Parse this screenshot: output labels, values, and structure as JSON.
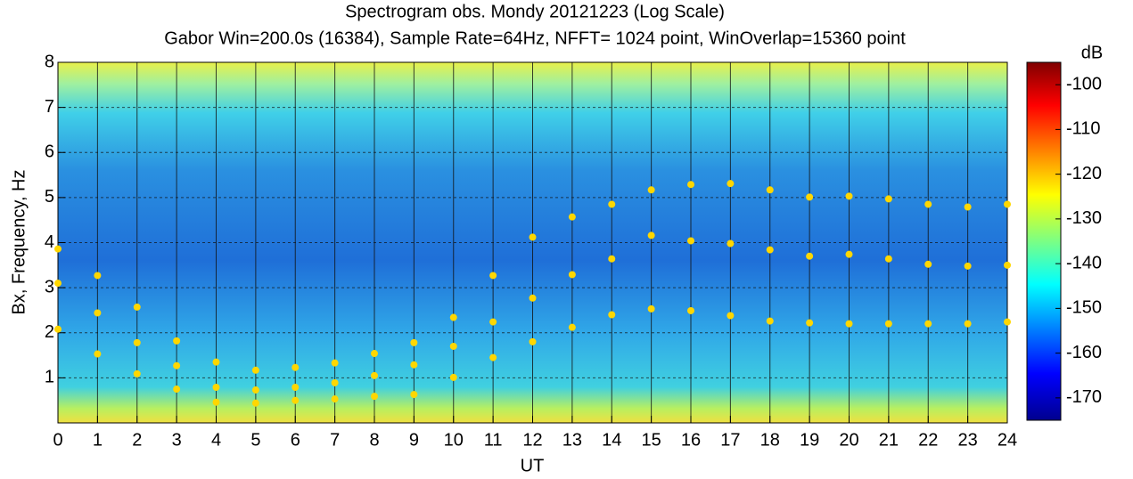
{
  "chart_data": {
    "type": "scatter",
    "title": "Spectrogram   obs. Mondy 20121223 (Log Scale)",
    "subtitle": "Gabor Win=200.0s (16384), Sample Rate=64Hz, NFFT= 1024 point, WinOverlap=15360 point",
    "x_label": "UT",
    "y_label": "Bx, Frequency, Hz",
    "xlim": [
      0,
      24
    ],
    "xticks": [
      0,
      1,
      2,
      3,
      4,
      5,
      6,
      7,
      8,
      9,
      10,
      11,
      12,
      13,
      14,
      15,
      16,
      17,
      18,
      19,
      20,
      21,
      22,
      23,
      24
    ],
    "ylim": [
      0,
      8
    ],
    "yticks": [
      1,
      2,
      3,
      4,
      5,
      6,
      7,
      8
    ],
    "grid": true,
    "series": [
      {
        "color": "#ffd700",
        "x": [
          0,
          0,
          0,
          1,
          1,
          1,
          2,
          2,
          2,
          3,
          3,
          3,
          4,
          4,
          4,
          5,
          5,
          5,
          6,
          6,
          6,
          7,
          7,
          7,
          8,
          8,
          8,
          9,
          9,
          9,
          10,
          10,
          10,
          11,
          11,
          11,
          12,
          12,
          12,
          13,
          13,
          13,
          14,
          14,
          14,
          15,
          15,
          15,
          16,
          16,
          16,
          17,
          17,
          17,
          18,
          18,
          18,
          19,
          19,
          19,
          20,
          20,
          20,
          21,
          21,
          21,
          22,
          22,
          22,
          23,
          23,
          23,
          24,
          24,
          24
        ],
        "values": [
          3.86,
          3.1,
          2.08,
          3.27,
          2.44,
          1.53,
          2.57,
          1.78,
          1.09,
          1.82,
          1.27,
          0.75,
          1.35,
          0.79,
          0.46,
          1.17,
          0.73,
          0.44,
          1.23,
          0.79,
          0.5,
          1.33,
          0.89,
          0.53,
          1.54,
          1.05,
          0.59,
          1.78,
          1.29,
          0.63,
          2.34,
          1.7,
          1.01,
          3.27,
          2.24,
          1.45,
          4.12,
          2.77,
          1.8,
          4.57,
          3.29,
          2.12,
          4.85,
          3.64,
          2.4,
          5.17,
          4.16,
          2.53,
          5.29,
          4.04,
          2.49,
          5.31,
          3.98,
          2.38,
          5.17,
          3.84,
          2.26,
          5.01,
          3.7,
          2.22,
          5.03,
          3.74,
          2.2,
          4.97,
          3.64,
          2.2,
          4.85,
          3.52,
          2.2,
          4.79,
          3.48,
          2.2,
          4.85,
          3.5,
          2.24
        ]
      }
    ],
    "colorbar": {
      "label": "dB",
      "lim": [
        -175,
        -95
      ],
      "ticks": [
        -100,
        -110,
        -120,
        -130,
        -140,
        -150,
        -160,
        -170
      ]
    }
  }
}
